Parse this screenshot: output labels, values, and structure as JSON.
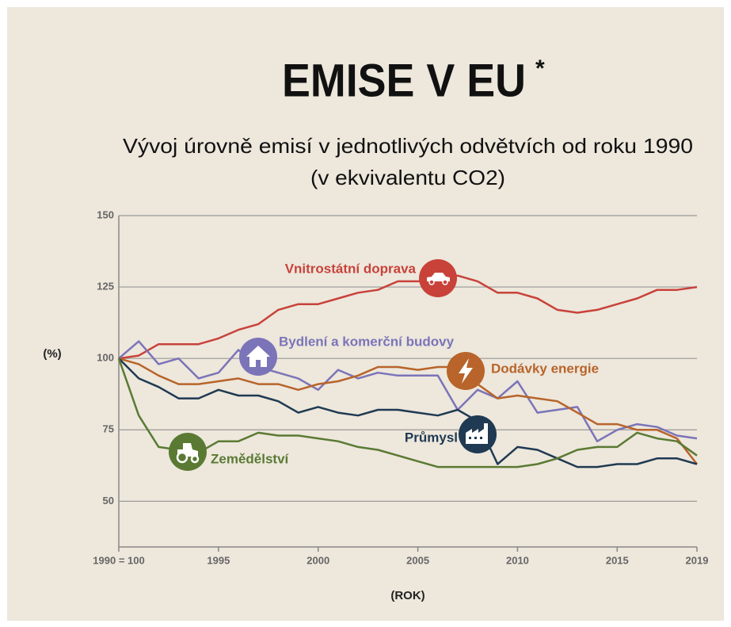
{
  "chart_data": {
    "type": "line",
    "title": "EMISE V EU",
    "title_note": "*",
    "subtitle": [
      "Vývoj úrovně emisí v jednotlivých odvětvích od roku 1990",
      "(v ekvivalentu CO2)"
    ],
    "y_label": "(%)",
    "x_label": "(ROK)",
    "x": [
      1990,
      1991,
      1992,
      1993,
      1994,
      1995,
      1996,
      1997,
      1998,
      1999,
      2000,
      2001,
      2002,
      2003,
      2004,
      2005,
      2006,
      2007,
      2008,
      2009,
      2010,
      2011,
      2012,
      2013,
      2014,
      2015,
      2016,
      2017,
      2018,
      2019
    ],
    "xlim": [
      1990,
      2019
    ],
    "xticks": [
      {
        "value": 1990,
        "label": "1990 = 100"
      },
      1995,
      2000,
      2005,
      2010,
      2015,
      2019
    ],
    "ylim": [
      34,
      150
    ],
    "yticks": [
      50,
      75,
      100,
      125,
      150
    ],
    "grid": true,
    "series": [
      {
        "name": "Vnitrostátní doprava",
        "color": "#c8423a",
        "values": [
          100,
          101,
          105,
          105,
          105,
          107,
          110,
          112,
          117,
          119,
          119,
          121,
          123,
          124,
          127,
          127,
          127,
          129,
          127,
          123,
          123,
          121,
          117,
          116,
          117,
          119,
          121,
          124,
          124,
          125
        ]
      },
      {
        "name": "Bydlení a komerční budovy",
        "color": "#7b74b8",
        "values": [
          100,
          106,
          98,
          100,
          93,
          95,
          103,
          97,
          95,
          93,
          89,
          96,
          93,
          95,
          94,
          94,
          94,
          82,
          89,
          86,
          92,
          81,
          82,
          83,
          71,
          75,
          77,
          76,
          73,
          72
        ]
      },
      {
        "name": "Dodávky energie",
        "color": "#b8642a",
        "values": [
          100,
          98,
          94,
          91,
          91,
          92,
          93,
          91,
          91,
          89,
          91,
          92,
          94,
          97,
          97,
          96,
          97,
          97,
          91,
          86,
          87,
          86,
          85,
          81,
          77,
          77,
          75,
          75,
          72,
          63
        ]
      },
      {
        "name": "Průmysl",
        "color": "#1f3a52",
        "values": [
          100,
          93,
          90,
          86,
          86,
          89,
          87,
          87,
          85,
          81,
          83,
          81,
          80,
          82,
          82,
          81,
          80,
          82,
          78,
          63,
          69,
          68,
          65,
          62,
          62,
          63,
          63,
          65,
          65,
          63
        ]
      },
      {
        "name": "Zemědělství",
        "color": "#5a7a33",
        "values": [
          100,
          80,
          69,
          68,
          67,
          71,
          71,
          74,
          73,
          73,
          72,
          71,
          69,
          68,
          66,
          64,
          62,
          62,
          62,
          62,
          62,
          63,
          65,
          68,
          69,
          69,
          74,
          72,
          71,
          66
        ]
      }
    ]
  }
}
